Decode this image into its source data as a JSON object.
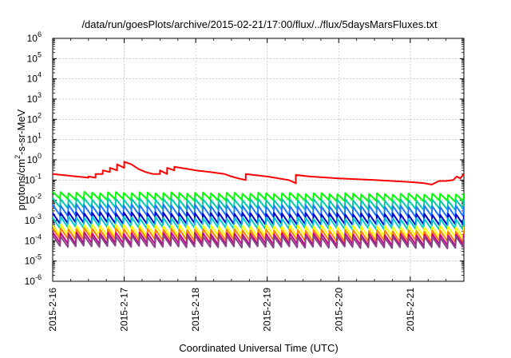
{
  "chart_data": {
    "type": "line",
    "title": "/data/run/goesPlots/archive/2015-02-21/17:00/flux/../flux/5daysMarsFluxes.txt",
    "xlabel": "Coordinated Universal Time (UTC)",
    "ylabel": {
      "prefix": "protons/cm",
      "superscript": "2",
      "suffix": "-s-sr-MeV"
    },
    "yscale": "log",
    "ylim_exp": [
      -6,
      6
    ],
    "y_tick_exponents": [
      -6,
      -5,
      -4,
      -3,
      -2,
      -1,
      0,
      1,
      2,
      3,
      4,
      5,
      6
    ],
    "y_tick_base": "10",
    "x_ticks": [
      "2015-2-16",
      "2015-2-17",
      "2015-2-18",
      "2015-2-19",
      "2015-2-20",
      "2015-2-21"
    ],
    "xlim_days": [
      0,
      5.75
    ],
    "grid": true,
    "series": [
      {
        "color": "#ff0000",
        "points": [
          [
            0,
            0.2
          ],
          [
            0.5,
            0.13
          ],
          [
            0.5,
            0.15
          ],
          [
            0.6,
            0.13
          ],
          [
            0.6,
            0.2
          ],
          [
            0.7,
            0.2
          ],
          [
            0.7,
            0.3
          ],
          [
            0.8,
            0.25
          ],
          [
            0.8,
            0.4
          ],
          [
            0.9,
            0.3
          ],
          [
            0.9,
            0.6
          ],
          [
            1.0,
            0.4
          ],
          [
            1.0,
            0.8
          ],
          [
            1.1,
            0.6
          ],
          [
            1.2,
            0.35
          ],
          [
            1.3,
            0.25
          ],
          [
            1.4,
            0.2
          ],
          [
            1.5,
            0.2
          ],
          [
            1.5,
            0.3
          ],
          [
            1.6,
            0.2
          ],
          [
            1.6,
            0.4
          ],
          [
            1.7,
            0.3
          ],
          [
            1.7,
            0.45
          ],
          [
            1.9,
            0.35
          ],
          [
            2.0,
            0.3
          ],
          [
            2.2,
            0.25
          ],
          [
            2.4,
            0.2
          ],
          [
            2.5,
            0.15
          ],
          [
            2.6,
            0.12
          ],
          [
            2.7,
            0.1
          ],
          [
            2.7,
            0.2
          ],
          [
            2.8,
            0.18
          ],
          [
            3.0,
            0.15
          ],
          [
            3.3,
            0.1
          ],
          [
            3.4,
            0.07
          ],
          [
            3.4,
            0.18
          ],
          [
            3.6,
            0.15
          ],
          [
            4.0,
            0.12
          ],
          [
            4.5,
            0.1
          ],
          [
            5.0,
            0.08
          ],
          [
            5.2,
            0.07
          ],
          [
            5.3,
            0.06
          ],
          [
            5.4,
            0.09
          ],
          [
            5.5,
            0.09
          ],
          [
            5.6,
            0.1
          ],
          [
            5.65,
            0.15
          ],
          [
            5.7,
            0.12
          ],
          [
            5.75,
            0.2
          ]
        ]
      },
      {
        "color": "#00ff00",
        "spikes": {
          "start_y": 0.025,
          "end_y": 0.02,
          "dip": 0.45
        }
      },
      {
        "color": "#00ccaa",
        "spikes": {
          "start_y": 0.012,
          "end_y": 0.01,
          "dip": 0.35
        }
      },
      {
        "color": "#1e78ff",
        "spikes": {
          "start_y": 0.006,
          "end_y": 0.005,
          "dip": 0.3
        }
      },
      {
        "color": "#0000cc",
        "spikes": {
          "start_y": 0.0025,
          "end_y": 0.002,
          "dip": 0.3
        }
      },
      {
        "color": "#00c8d2",
        "spikes": {
          "start_y": 0.0015,
          "end_y": 0.0012,
          "dip": 0.3
        }
      },
      {
        "color": "#ffff00",
        "spikes": {
          "start_y": 0.0006,
          "end_y": 0.0005,
          "dip": 0.3
        }
      },
      {
        "color": "#ff8000",
        "spikes": {
          "start_y": 0.0004,
          "end_y": 0.0003,
          "dip": 0.3
        }
      },
      {
        "color": "#cc0088",
        "spikes": {
          "start_y": 0.00025,
          "end_y": 0.0002,
          "dip": 0.3
        }
      },
      {
        "color": "#884488",
        "spikes": {
          "start_y": 0.00018,
          "end_y": 0.00015,
          "dip": 0.3
        }
      }
    ],
    "spike_count": 52
  }
}
